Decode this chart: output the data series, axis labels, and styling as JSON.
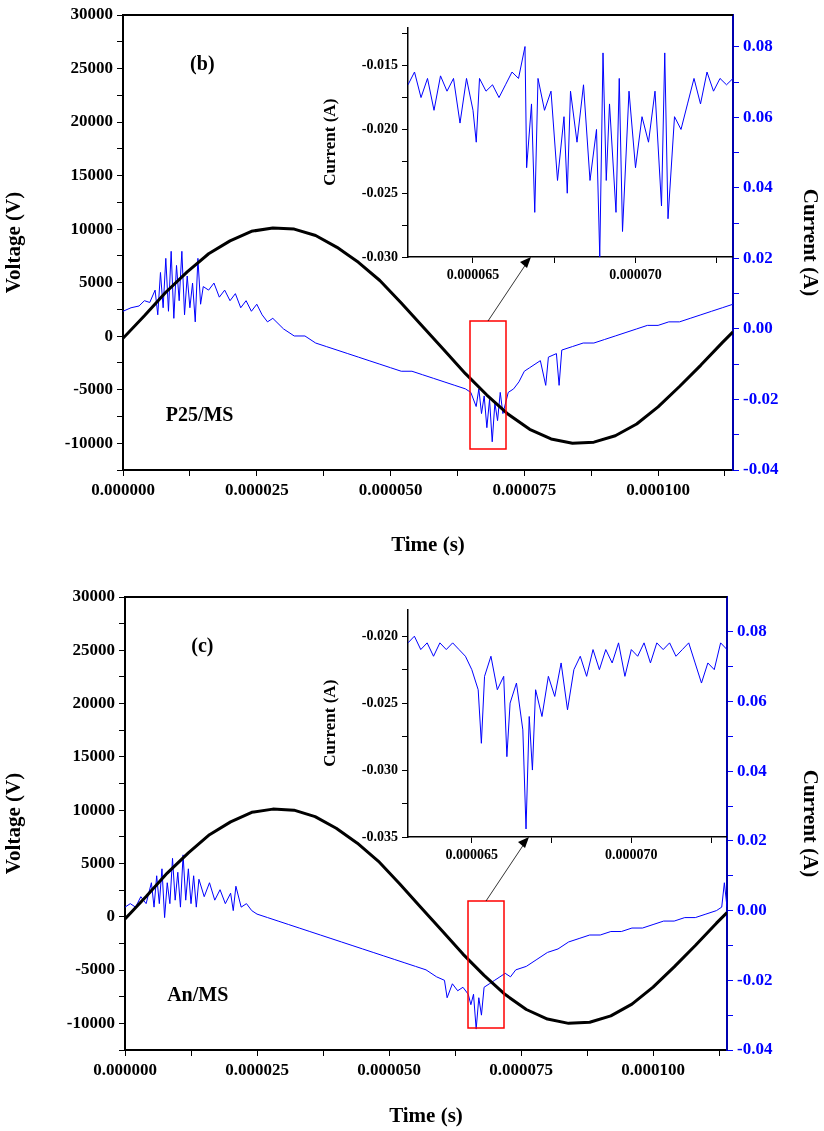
{
  "chart_data": [
    {
      "type": "line",
      "xlabel": "Time (s)",
      "ylabel": "Voltage (V)",
      "y2label": "Current (A)",
      "annotations": [
        "(b)",
        "P25/MS"
      ],
      "xlim": [
        0,
        0.000114
      ],
      "ylim": [
        -12500,
        30000
      ],
      "y2lim": [
        -0.04,
        0.089
      ],
      "xticks": [
        {
          "value": 0,
          "label": "0.000000"
        },
        {
          "value": 1.25e-05,
          "label": null
        },
        {
          "value": 2.5e-05,
          "label": "0.000025"
        },
        {
          "value": 3.75e-05,
          "label": null
        },
        {
          "value": 5e-05,
          "label": "0.000050"
        },
        {
          "value": 6.25e-05,
          "label": null
        },
        {
          "value": 7.5e-05,
          "label": "0.000075"
        },
        {
          "value": 8.75e-05,
          "label": null
        },
        {
          "value": 0.0001,
          "label": "0.000100"
        },
        {
          "value": 0.0001125,
          "label": null
        }
      ],
      "yticks": [
        {
          "value": -12500,
          "label": null
        },
        -10000,
        {
          "value": -7500,
          "label": null
        },
        -5000,
        {
          "value": -2500,
          "label": null
        },
        0,
        {
          "value": 2500,
          "label": null
        },
        5000,
        {
          "value": 7500,
          "label": null
        },
        10000,
        {
          "value": 12500,
          "label": null
        },
        15000,
        {
          "value": 17500,
          "label": null
        },
        20000,
        {
          "value": 22500,
          "label": null
        },
        25000,
        {
          "value": 27500,
          "label": null
        },
        30000
      ],
      "y2ticks": [
        -0.04,
        {
          "value": -0.03,
          "label": null
        },
        -0.02,
        {
          "value": -0.01,
          "label": null
        },
        {
          "value": 0,
          "label": "0.00"
        },
        {
          "value": 0.01,
          "label": null
        },
        0.02,
        {
          "value": 0.03,
          "label": null
        },
        0.04,
        {
          "value": 0.05,
          "label": null
        },
        0.06,
        {
          "value": 0.07,
          "label": null
        },
        0.08
      ],
      "series": [
        {
          "color": "#000000",
          "x": [
            0,
            4e-06,
            8e-06,
            1.2e-05,
            1.6e-05,
            2e-05,
            2.4e-05,
            2.8e-05,
            3.2e-05,
            3.6e-05,
            4e-05,
            4.4e-05,
            4.8e-05,
            5.2e-05,
            5.6e-05,
            6e-05,
            6.4e-05,
            6.8e-05,
            7.2e-05,
            7.6e-05,
            8e-05,
            8.4e-05,
            8.8e-05,
            9.2e-05,
            9.6e-05,
            0.0001,
            0.000104,
            0.000108,
            0.000112,
            0.000114
          ],
          "values": [
            -200,
            1900,
            4100,
            6000,
            7700,
            8900,
            9800,
            10100,
            10000,
            9400,
            8300,
            6900,
            5200,
            3100,
            900,
            -1300,
            -3500,
            -5500,
            -7300,
            -8700,
            -9600,
            -10000,
            -9900,
            -9300,
            -8200,
            -6600,
            -4700,
            -2700,
            -600,
            400
          ]
        },
        {
          "color": "#0000ff",
          "axis": "y2",
          "x": [
            0,
            1.5e-06,
            3e-06,
            4e-06,
            5e-06,
            6e-06,
            6.5e-06,
            7e-06,
            7.5e-06,
            8e-06,
            8.5e-06,
            9e-06,
            9.5e-06,
            1e-05,
            1.05e-05,
            1.1e-05,
            1.15e-05,
            1.2e-05,
            1.25e-05,
            1.3e-05,
            1.35e-05,
            1.4e-05,
            1.45e-05,
            1.5e-05,
            1.6e-05,
            1.7e-05,
            1.8e-05,
            1.9e-05,
            2e-05,
            2.1e-05,
            2.2e-05,
            2.3e-05,
            2.4e-05,
            2.5e-05,
            2.6e-05,
            2.7e-05,
            2.8e-05,
            3e-05,
            3.2e-05,
            3.4e-05,
            3.6e-05,
            3.8e-05,
            4e-05,
            4.2e-05,
            4.4e-05,
            4.6e-05,
            4.8e-05,
            5e-05,
            5.2e-05,
            5.4e-05,
            5.6e-05,
            5.8e-05,
            6e-05,
            6.2e-05,
            6.4e-05,
            6.5e-05,
            6.6e-05,
            6.65e-05,
            6.7e-05,
            6.75e-05,
            6.8e-05,
            6.85e-05,
            6.9e-05,
            6.95e-05,
            7e-05,
            7.05e-05,
            7.1e-05,
            7.2e-05,
            7.3e-05,
            7.4e-05,
            7.5e-05,
            7.6e-05,
            7.8e-05,
            7.9e-05,
            7.95e-05,
            8.1e-05,
            8.15e-05,
            8.2e-05,
            8.4e-05,
            8.6e-05,
            8.8e-05,
            9e-05,
            9.2e-05,
            9.4e-05,
            9.6e-05,
            9.8e-05,
            0.0001,
            0.000102,
            0.000104,
            0.000106,
            0.000108,
            0.00011,
            0.000112,
            0.000114
          ],
          "values": [
            0.005,
            0.006,
            0.0065,
            0.008,
            0.0075,
            0.011,
            0.004,
            0.016,
            0.006,
            0.02,
            0.005,
            0.022,
            0.003,
            0.018,
            0.008,
            0.022,
            0.004,
            0.015,
            0.006,
            0.013,
            0.002,
            0.02,
            0.007,
            0.012,
            0.011,
            0.013,
            0.009,
            0.011,
            0.008,
            0.01,
            0.006,
            0.008,
            0.005,
            0.007,
            0.004,
            0.002,
            0.003,
            0,
            -0.002,
            -0.002,
            -0.004,
            -0.005,
            -0.006,
            -0.007,
            -0.008,
            -0.009,
            -0.01,
            -0.011,
            -0.012,
            -0.012,
            -0.013,
            -0.014,
            -0.015,
            -0.016,
            -0.017,
            -0.018,
            -0.022,
            -0.017,
            -0.024,
            -0.019,
            -0.028,
            -0.02,
            -0.032,
            -0.021,
            -0.026,
            -0.018,
            -0.024,
            -0.018,
            -0.017,
            -0.015,
            -0.012,
            -0.011,
            -0.009,
            -0.016,
            -0.008,
            -0.007,
            -0.016,
            -0.006,
            -0.005,
            -0.004,
            -0.004,
            -0.003,
            -0.002,
            -0.001,
            0,
            0.001,
            0.001,
            0.002,
            0.002,
            0.003,
            0.004,
            0.005,
            0.006,
            0.007
          ]
        }
      ]
    },
    {
      "type": "line",
      "ylabel": "Current (A)",
      "xlim": [
        6.3e-05,
        7.3e-05
      ],
      "ylim": [
        -0.03,
        -0.012
      ],
      "xticks": [
        {
          "value": 6.5e-05,
          "label": "0.000065"
        },
        {
          "value": 6.75e-05,
          "label": null
        },
        {
          "value": 7e-05,
          "label": "0.000070"
        },
        {
          "value": 7.25e-05,
          "label": null
        }
      ],
      "yticks": [
        {
          "value": -0.03,
          "label": "-0.030"
        },
        {
          "value": -0.0275,
          "label": null
        },
        -0.025,
        {
          "value": -0.0225,
          "label": null
        },
        {
          "value": -0.02,
          "label": "-0.020"
        },
        {
          "value": -0.0175,
          "label": null
        },
        -0.015,
        {
          "value": -0.0125,
          "label": null
        }
      ],
      "series": [
        {
          "color": "#0000ff",
          "x": [
            6.3e-05,
            6.32e-05,
            6.34e-05,
            6.36e-05,
            6.38e-05,
            6.4e-05,
            6.42e-05,
            6.44e-05,
            6.46e-05,
            6.48e-05,
            6.5e-05,
            6.51e-05,
            6.52e-05,
            6.54e-05,
            6.56e-05,
            6.58e-05,
            6.6e-05,
            6.62e-05,
            6.64e-05,
            6.66e-05,
            6.665e-05,
            6.68e-05,
            6.69e-05,
            6.7e-05,
            6.72e-05,
            6.74e-05,
            6.76e-05,
            6.78e-05,
            6.79e-05,
            6.8e-05,
            6.82e-05,
            6.84e-05,
            6.86e-05,
            6.88e-05,
            6.89e-05,
            6.9e-05,
            6.91e-05,
            6.92e-05,
            6.94e-05,
            6.95e-05,
            6.96e-05,
            6.98e-05,
            7e-05,
            7.02e-05,
            7.04e-05,
            7.06e-05,
            7.08e-05,
            7.09e-05,
            7.1e-05,
            7.12e-05,
            7.14e-05,
            7.16e-05,
            7.18e-05,
            7.2e-05,
            7.22e-05,
            7.24e-05,
            7.26e-05,
            7.28e-05,
            7.3e-05
          ],
          "values": [
            -0.0165,
            -0.0155,
            -0.0175,
            -0.016,
            -0.0185,
            -0.0158,
            -0.017,
            -0.016,
            -0.0195,
            -0.016,
            -0.0185,
            -0.021,
            -0.016,
            -0.017,
            -0.0165,
            -0.0175,
            -0.0165,
            -0.0155,
            -0.016,
            -0.0135,
            -0.023,
            -0.018,
            -0.0265,
            -0.016,
            -0.0185,
            -0.017,
            -0.024,
            -0.019,
            -0.025,
            -0.017,
            -0.021,
            -0.0165,
            -0.024,
            -0.02,
            -0.03,
            -0.014,
            -0.024,
            -0.018,
            -0.0265,
            -0.016,
            -0.028,
            -0.017,
            -0.023,
            -0.019,
            -0.021,
            -0.017,
            -0.026,
            -0.014,
            -0.027,
            -0.019,
            -0.02,
            -0.018,
            -0.016,
            -0.018,
            -0.0155,
            -0.017,
            -0.016,
            -0.0165,
            -0.016
          ]
        }
      ]
    },
    {
      "type": "line",
      "xlabel": "Time (s)",
      "ylabel": "Voltage (V)",
      "y2label": "Current (A)",
      "annotations": [
        "(c)",
        "An/MS"
      ],
      "xlim": [
        0,
        0.000114
      ],
      "ylim": [
        -12500,
        30000
      ],
      "y2lim": [
        -0.04,
        0.09
      ],
      "xticks": [
        {
          "value": 0,
          "label": "0.000000"
        },
        {
          "value": 1.25e-05,
          "label": null
        },
        {
          "value": 2.5e-05,
          "label": "0.000025"
        },
        {
          "value": 3.75e-05,
          "label": null
        },
        {
          "value": 5e-05,
          "label": "0.000050"
        },
        {
          "value": 6.25e-05,
          "label": null
        },
        {
          "value": 7.5e-05,
          "label": "0.000075"
        },
        {
          "value": 8.75e-05,
          "label": null
        },
        {
          "value": 0.0001,
          "label": "0.000100"
        },
        {
          "value": 0.0001125,
          "label": null
        }
      ],
      "yticks": [
        {
          "value": -12500,
          "label": null
        },
        -10000,
        {
          "value": -7500,
          "label": null
        },
        -5000,
        {
          "value": -2500,
          "label": null
        },
        0,
        {
          "value": 2500,
          "label": null
        },
        5000,
        {
          "value": 7500,
          "label": null
        },
        10000,
        {
          "value": 12500,
          "label": null
        },
        15000,
        {
          "value": 17500,
          "label": null
        },
        20000,
        {
          "value": 22500,
          "label": null
        },
        25000,
        {
          "value": 27500,
          "label": null
        },
        30000
      ],
      "y2ticks": [
        -0.04,
        {
          "value": -0.03,
          "label": null
        },
        -0.02,
        {
          "value": -0.01,
          "label": null
        },
        {
          "value": 0,
          "label": "0.00"
        },
        {
          "value": 0.01,
          "label": null
        },
        0.02,
        {
          "value": 0.03,
          "label": null
        },
        0.04,
        {
          "value": 0.05,
          "label": null
        },
        0.06,
        {
          "value": 0.07,
          "label": null
        },
        0.08
      ],
      "series": [
        {
          "color": "#000000",
          "x": [
            0,
            4e-06,
            8e-06,
            1.2e-05,
            1.6e-05,
            2e-05,
            2.4e-05,
            2.8e-05,
            3.2e-05,
            3.6e-05,
            4e-05,
            4.4e-05,
            4.8e-05,
            5.2e-05,
            5.6e-05,
            6e-05,
            6.4e-05,
            6.8e-05,
            7.2e-05,
            7.6e-05,
            8e-05,
            8.4e-05,
            8.8e-05,
            9.2e-05,
            9.6e-05,
            0.0001,
            0.000104,
            0.000108,
            0.000112,
            0.000114
          ],
          "values": [
            -200,
            1900,
            4100,
            6000,
            7700,
            8900,
            9800,
            10100,
            10000,
            9400,
            8300,
            6900,
            5200,
            3100,
            900,
            -1300,
            -3500,
            -5500,
            -7300,
            -8700,
            -9600,
            -10000,
            -9900,
            -9300,
            -8200,
            -6600,
            -4700,
            -2700,
            -600,
            400
          ]
        },
        {
          "color": "#0000ff",
          "axis": "y2",
          "x": [
            0,
            1e-06,
            2e-06,
            3e-06,
            4e-06,
            5e-06,
            5.5e-06,
            6e-06,
            6.5e-06,
            7e-06,
            7.5e-06,
            8e-06,
            8.5e-06,
            9e-06,
            9.5e-06,
            1e-05,
            1.05e-05,
            1.1e-05,
            1.15e-05,
            1.2e-05,
            1.25e-05,
            1.3e-05,
            1.35e-05,
            1.4e-05,
            1.5e-05,
            1.6e-05,
            1.7e-05,
            1.8e-05,
            1.9e-05,
            2e-05,
            2.05e-05,
            2.1e-05,
            2.2e-05,
            2.3e-05,
            2.4e-05,
            2.5e-05,
            2.7e-05,
            2.9e-05,
            3.1e-05,
            3.3e-05,
            3.5e-05,
            3.7e-05,
            3.9e-05,
            4.1e-05,
            4.3e-05,
            4.5e-05,
            4.7e-05,
            4.9e-05,
            5.1e-05,
            5.3e-05,
            5.5e-05,
            5.7e-05,
            5.9e-05,
            6.05e-05,
            6.1e-05,
            6.2e-05,
            6.3e-05,
            6.4e-05,
            6.5e-05,
            6.55e-05,
            6.6e-05,
            6.65e-05,
            6.7e-05,
            6.75e-05,
            6.8e-05,
            6.9e-05,
            7e-05,
            7.1e-05,
            7.2e-05,
            7.3e-05,
            7.4e-05,
            7.6e-05,
            7.8e-05,
            8e-05,
            8.2e-05,
            8.4e-05,
            8.6e-05,
            8.8e-05,
            9e-05,
            9.2e-05,
            9.4e-05,
            9.6e-05,
            9.8e-05,
            0.0001,
            0.000102,
            0.000104,
            0.000106,
            0.000108,
            0.00011,
            0.000112,
            0.000113,
            0.0001135,
            0.000114
          ],
          "values": [
            0.001,
            0.002,
            0.001,
            0.004,
            0.002,
            0.008,
            0.001,
            0.01,
            0.002,
            0.012,
            -0.002,
            0.008,
            0.002,
            0.015,
            0.003,
            0.011,
            0.001,
            0.016,
            0.003,
            0.012,
            0.002,
            0.01,
            0.001,
            0.009,
            0.004,
            0.008,
            0.003,
            0.006,
            0.002,
            0.005,
            0,
            0.007,
            0.001,
            0.002,
            0,
            -0.001,
            -0.002,
            -0.003,
            -0.004,
            -0.005,
            -0.006,
            -0.007,
            -0.008,
            -0.009,
            -0.01,
            -0.011,
            -0.012,
            -0.013,
            -0.014,
            -0.015,
            -0.016,
            -0.017,
            -0.019,
            -0.02,
            -0.025,
            -0.021,
            -0.023,
            -0.022,
            -0.024,
            -0.027,
            -0.024,
            -0.034,
            -0.025,
            -0.03,
            -0.022,
            -0.021,
            -0.02,
            -0.019,
            -0.018,
            -0.019,
            -0.017,
            -0.016,
            -0.014,
            -0.012,
            -0.011,
            -0.009,
            -0.008,
            -0.007,
            -0.007,
            -0.006,
            -0.006,
            -0.005,
            -0.005,
            -0.004,
            -0.003,
            -0.003,
            -0.002,
            -0.002,
            -0.001,
            0,
            0.001,
            0.008,
            0.001
          ]
        }
      ]
    },
    {
      "type": "line",
      "ylabel": "Current (A)",
      "xlim": [
        6.3e-05,
        7.3e-05
      ],
      "ylim": [
        -0.035,
        -0.018
      ],
      "xticks": [
        {
          "value": 6.5e-05,
          "label": "0.000065"
        },
        {
          "value": 6.75e-05,
          "label": null
        },
        {
          "value": 7e-05,
          "label": "0.000070"
        },
        {
          "value": 7.25e-05,
          "label": null
        }
      ],
      "yticks": [
        -0.035,
        {
          "value": -0.0325,
          "label": null
        },
        {
          "value": -0.03,
          "label": "-0.030"
        },
        {
          "value": -0.0275,
          "label": null
        },
        -0.025,
        {
          "value": -0.0225,
          "label": null
        },
        {
          "value": -0.02,
          "label": "-0.020"
        }
      ],
      "series": [
        {
          "color": "#0000ff",
          "x": [
            6.3e-05,
            6.32e-05,
            6.34e-05,
            6.36e-05,
            6.38e-05,
            6.4e-05,
            6.42e-05,
            6.44e-05,
            6.46e-05,
            6.48e-05,
            6.5e-05,
            6.52e-05,
            6.53e-05,
            6.54e-05,
            6.56e-05,
            6.58e-05,
            6.6e-05,
            6.61e-05,
            6.62e-05,
            6.64e-05,
            6.66e-05,
            6.67e-05,
            6.68e-05,
            6.69e-05,
            6.7e-05,
            6.72e-05,
            6.74e-05,
            6.76e-05,
            6.78e-05,
            6.8e-05,
            6.82e-05,
            6.84e-05,
            6.86e-05,
            6.88e-05,
            6.9e-05,
            6.92e-05,
            6.94e-05,
            6.96e-05,
            6.98e-05,
            7e-05,
            7.02e-05,
            7.04e-05,
            7.06e-05,
            7.08e-05,
            7.1e-05,
            7.12e-05,
            7.14e-05,
            7.16e-05,
            7.18e-05,
            7.2e-05,
            7.22e-05,
            7.24e-05,
            7.26e-05,
            7.28e-05,
            7.3e-05
          ],
          "values": [
            -0.0205,
            -0.02,
            -0.021,
            -0.0205,
            -0.0215,
            -0.0205,
            -0.021,
            -0.0205,
            -0.021,
            -0.0215,
            -0.0225,
            -0.024,
            -0.028,
            -0.023,
            -0.0215,
            -0.024,
            -0.023,
            -0.029,
            -0.025,
            -0.0235,
            -0.027,
            -0.0344,
            -0.026,
            -0.03,
            -0.024,
            -0.026,
            -0.023,
            -0.0245,
            -0.022,
            -0.0255,
            -0.0225,
            -0.0215,
            -0.023,
            -0.021,
            -0.0225,
            -0.021,
            -0.022,
            -0.0205,
            -0.023,
            -0.021,
            -0.0215,
            -0.0205,
            -0.022,
            -0.0205,
            -0.021,
            -0.0205,
            -0.0215,
            -0.021,
            -0.0205,
            -0.022,
            -0.0235,
            -0.022,
            -0.0225,
            -0.0205,
            -0.021
          ]
        }
      ]
    }
  ]
}
